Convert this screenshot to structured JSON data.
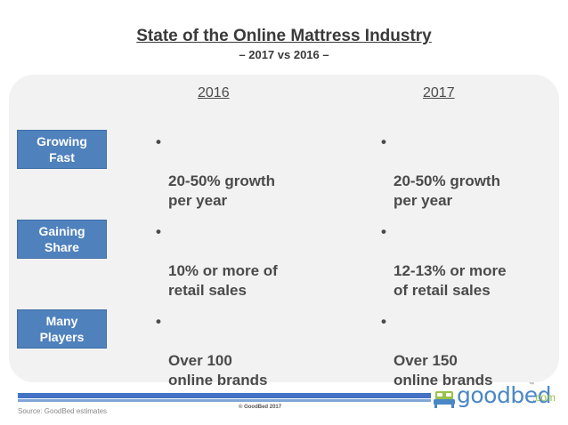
{
  "header": {
    "title": "State of the Online Mattress Industry",
    "subtitle": "– 2017 vs 2016 –"
  },
  "columns": [
    "2016",
    "2017"
  ],
  "bullet": "•",
  "rows": [
    {
      "label": "Growing\nFast",
      "y2016": "20-50% growth\nper year",
      "y2017": "20-50% growth\nper year"
    },
    {
      "label": "Gaining\nShare",
      "y2016": "10% or more of\nretail sales",
      "y2017": "12-13% or more\nof retail sales"
    },
    {
      "label": "Many\nPlayers",
      "y2016": "Over 100\nonline brands",
      "y2017": "Over 150\nonline brands"
    }
  ],
  "footer": {
    "source": "Source: GoodBed estimates",
    "copyright": "© GoodBed 2017"
  },
  "logo": {
    "word": "goodbed",
    "suffix": ".com",
    "tm": "™"
  },
  "colors": {
    "label_bg": "#4f81bd",
    "bar": "#4472c4",
    "logo_blue": "#4a87c5",
    "logo_green": "#9ac24a"
  }
}
